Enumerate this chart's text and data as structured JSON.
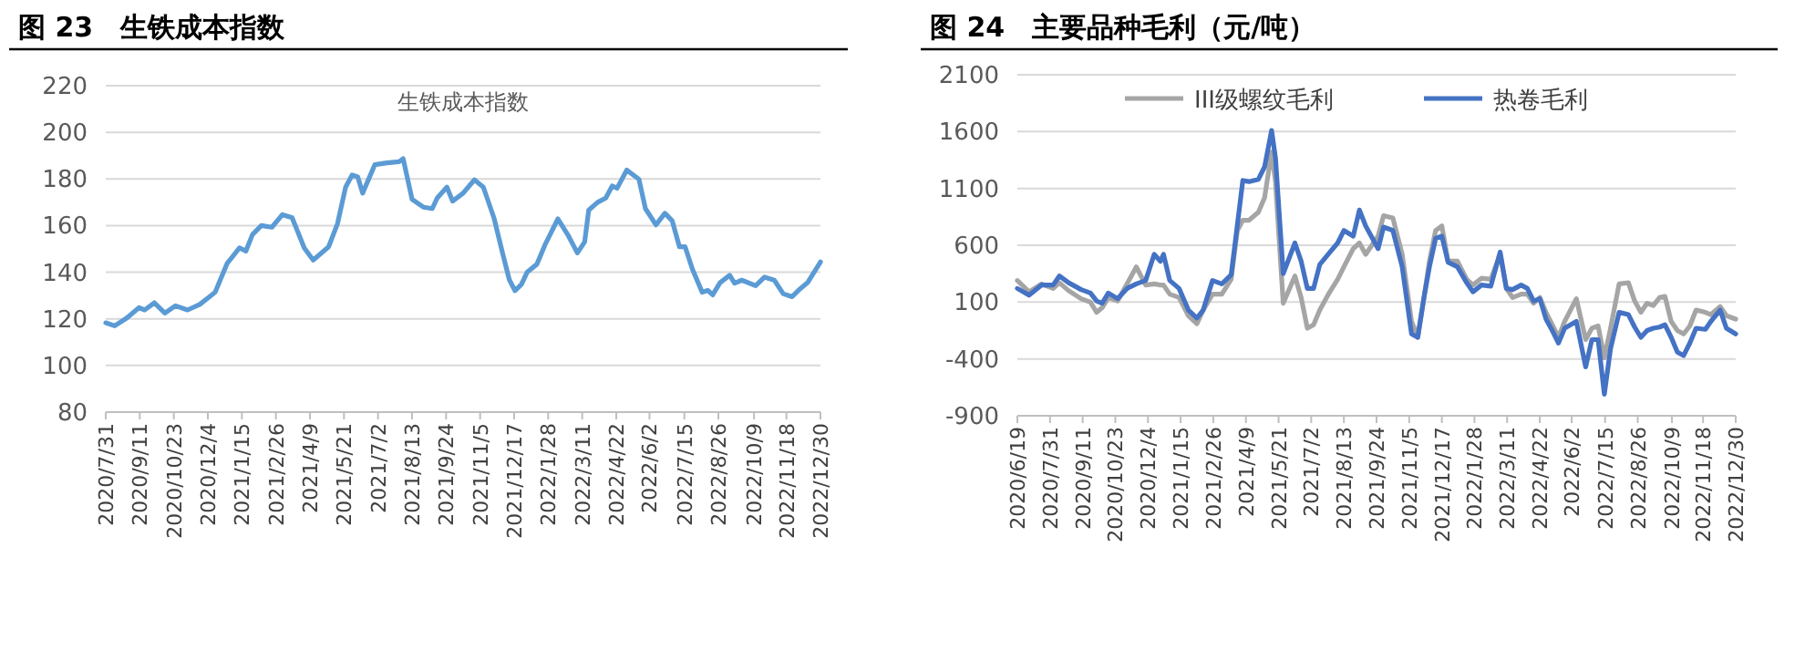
{
  "chart_data": [
    {
      "type": "line",
      "title": "图 23　生铁成本指数",
      "subtitle": "生铁成本指数",
      "x": [
        "2020-07-31",
        "2020-08-11",
        "2020-08-26",
        "2020-09-10",
        "2020-09-17",
        "2020-09-29",
        "2020-10-12",
        "2020-10-25",
        "2020-11-09",
        "2020-11-24",
        "2020-12-06",
        "2020-12-13",
        "2020-12-28",
        "2021-01-12",
        "2021-01-20",
        "2021-01-28",
        "2021-02-08",
        "2021-02-21",
        "2021-03-06",
        "2021-03-18",
        "2021-04-02",
        "2021-04-13",
        "2021-05-02",
        "2021-05-13",
        "2021-05-23",
        "2021-05-31",
        "2021-06-07",
        "2021-06-13",
        "2021-06-28",
        "2021-07-13",
        "2021-07-28",
        "2021-08-02",
        "2021-08-13",
        "2021-08-27",
        "2021-09-07",
        "2021-09-13",
        "2021-09-25",
        "2021-10-02",
        "2021-10-15",
        "2021-10-29",
        "2021-11-09",
        "2021-11-22",
        "2021-12-03",
        "2021-12-11",
        "2021-12-18",
        "2021-12-26",
        "2022-01-02",
        "2022-01-14",
        "2022-01-24",
        "2022-02-09",
        "2022-02-22",
        "2022-03-05",
        "2022-03-14",
        "2022-03-19",
        "2022-03-30",
        "2022-04-09",
        "2022-04-17",
        "2022-04-23",
        "2022-05-05",
        "2022-05-20",
        "2022-05-28",
        "2022-06-10",
        "2022-06-21",
        "2022-06-30",
        "2022-07-09",
        "2022-07-16",
        "2022-07-25",
        "2022-08-06",
        "2022-08-13",
        "2022-08-19",
        "2022-08-28",
        "2022-09-09",
        "2022-09-15",
        "2022-09-24",
        "2022-10-11",
        "2022-10-22",
        "2022-11-03",
        "2022-11-14",
        "2022-11-25",
        "2022-12-05",
        "2022-12-14",
        "2022-12-30"
      ],
      "series": [
        {
          "color": "#5b9bd5",
          "values": [
            118.3,
            117,
            120.4,
            124.8,
            123.8,
            126.9,
            122.5,
            125.6,
            123.8,
            126.2,
            129.5,
            131.4,
            143.9,
            150.4,
            149.1,
            156.1,
            160,
            159.3,
            164.7,
            163.4,
            150.4,
            145.2,
            150.9,
            160.8,
            176.5,
            181.7,
            180.9,
            173.9,
            186.1,
            186.9,
            187.4,
            188.7,
            171.3,
            167.9,
            167.3,
            171.8,
            176.5,
            170.5,
            173.9,
            179.6,
            176.5,
            163.4,
            147.8,
            136.8,
            132.1,
            134.8,
            140,
            143.4,
            151.7,
            162.9,
            155.6,
            148.3,
            153,
            166.6,
            170,
            171.8,
            177,
            176,
            183.8,
            179.9,
            167.3,
            160.3,
            165.3,
            162.1,
            150.9,
            150.9,
            141.3,
            131.4,
            132.2,
            130.3,
            135.5,
            138.7,
            135.3,
            136.6,
            134.2,
            137.9,
            136.6,
            130.8,
            129.5,
            132.9,
            135.5,
            144.4
          ]
        }
      ],
      "ylim": [
        80,
        220
      ],
      "yticks": [
        80,
        100,
        120,
        140,
        160,
        180,
        200,
        220
      ],
      "xlim": [
        "2020-07-31",
        "2022-12-30"
      ],
      "xticks": [
        {
          "value": "2020-07-31",
          "label": "2020/7/31"
        },
        {
          "value": "2020-09-11",
          "label": "2020/9/11"
        },
        {
          "value": "2020-10-23",
          "label": "2020/10/23"
        },
        {
          "value": "2020-12-04",
          "label": "2020/12/4"
        },
        {
          "value": "2021-01-15",
          "label": "2021/1/15"
        },
        {
          "value": "2021-02-26",
          "label": "2021/2/26"
        },
        {
          "value": "2021-04-09",
          "label": "2021/4/9"
        },
        {
          "value": "2021-05-21",
          "label": "2021/5/21"
        },
        {
          "value": "2021-07-02",
          "label": "2021/7/2"
        },
        {
          "value": "2021-08-13",
          "label": "2021/8/13"
        },
        {
          "value": "2021-09-24",
          "label": "2021/9/24"
        },
        {
          "value": "2021-11-05",
          "label": "2021/11/5"
        },
        {
          "value": "2021-12-17",
          "label": "2021/12/17"
        },
        {
          "value": "2022-01-28",
          "label": "2022/1/28"
        },
        {
          "value": "2022-03-11",
          "label": "2022/3/11"
        },
        {
          "value": "2022-04-22",
          "label": "2022/4/22"
        },
        {
          "value": "2022-06-02",
          "label": "2022/6/2"
        },
        {
          "value": "2022-07-15",
          "label": "2022/7/15"
        },
        {
          "value": "2022-08-26",
          "label": "2022/8/26"
        },
        {
          "value": "2022-10-09",
          "label": "2022/10/9"
        },
        {
          "value": "2022-11-18",
          "label": "2022/11/18"
        },
        {
          "value": "2022-12-30",
          "label": "2022/12/30"
        }
      ],
      "grid": "y",
      "legend": false
    },
    {
      "type": "line",
      "title": "图 24　主要品种毛利（元/吨）",
      "x": [
        "2020-06-19",
        "2020-07-04",
        "2020-07-20",
        "2020-08-04",
        "2020-08-12",
        "2020-08-24",
        "2020-09-09",
        "2020-09-21",
        "2020-09-29",
        "2020-10-06",
        "2020-10-14",
        "2020-10-26",
        "2020-11-07",
        "2020-11-19",
        "2020-12-01",
        "2020-12-12",
        "2020-12-20",
        "2020-12-24",
        "2021-01-01",
        "2021-01-13",
        "2021-01-25",
        "2021-02-05",
        "2021-02-13",
        "2021-02-25",
        "2021-03-09",
        "2021-03-21",
        "2021-03-29",
        "2021-04-05",
        "2021-04-13",
        "2021-04-25",
        "2021-05-03",
        "2021-05-12",
        "2021-05-17",
        "2021-05-27",
        "2021-06-11",
        "2021-06-19",
        "2021-06-27",
        "2021-07-05",
        "2021-07-13",
        "2021-07-25",
        "2021-08-05",
        "2021-08-13",
        "2021-08-25",
        "2021-09-02",
        "2021-09-10",
        "2021-09-26",
        "2021-10-03",
        "2021-10-15",
        "2021-10-27",
        "2021-11-08",
        "2021-11-16",
        "2021-11-24",
        "2021-12-01",
        "2021-12-09",
        "2021-12-17",
        "2021-12-25",
        "2022-01-06",
        "2022-01-18",
        "2022-01-26",
        "2022-02-06",
        "2022-02-18",
        "2022-03-02",
        "2022-03-10",
        "2022-03-18",
        "2022-03-29",
        "2022-04-06",
        "2022-04-14",
        "2022-04-22",
        "2022-04-30",
        "2022-05-08",
        "2022-05-16",
        "2022-05-24",
        "2022-06-08",
        "2022-06-20",
        "2022-06-28",
        "2022-07-06",
        "2022-07-14",
        "2022-07-22",
        "2022-08-02",
        "2022-08-14",
        "2022-08-22",
        "2022-08-30",
        "2022-09-07",
        "2022-09-15",
        "2022-09-23",
        "2022-09-30",
        "2022-10-08",
        "2022-10-16",
        "2022-10-24",
        "2022-11-01",
        "2022-11-09",
        "2022-11-21",
        "2022-11-28",
        "2022-12-10",
        "2022-12-18",
        "2022-12-30"
      ],
      "series": [
        {
          "name": "III级螺纹毛利",
          "color": "#a5a5a5",
          "values": [
            290,
            190,
            260,
            220,
            270,
            200,
            130,
            100,
            10,
            50,
            140,
            110,
            260,
            410,
            250,
            260,
            250,
            250,
            170,
            140,
            -20,
            -90,
            30,
            170,
            170,
            300,
            730,
            820,
            820,
            890,
            1020,
            1420,
            1160,
            90,
            330,
            140,
            -130,
            -100,
            30,
            180,
            300,
            410,
            570,
            620,
            520,
            680,
            860,
            840,
            520,
            -70,
            -210,
            140,
            460,
            730,
            770,
            460,
            460,
            300,
            250,
            310,
            300,
            520,
            220,
            140,
            170,
            170,
            90,
            140,
            10,
            -100,
            -210,
            -70,
            130,
            -230,
            -130,
            -110,
            -390,
            -130,
            260,
            270,
            110,
            10,
            90,
            70,
            140,
            150,
            -70,
            -150,
            -180,
            -110,
            30,
            10,
            -10,
            60,
            -20,
            -50
          ]
        },
        {
          "name": "热卷毛利",
          "color": "#4472c4",
          "values": [
            220,
            160,
            250,
            250,
            330,
            270,
            210,
            180,
            110,
            90,
            180,
            130,
            220,
            260,
            290,
            520,
            460,
            520,
            290,
            220,
            30,
            -40,
            30,
            290,
            260,
            340,
            780,
            1170,
            1160,
            1180,
            1290,
            1610,
            1370,
            350,
            620,
            460,
            220,
            220,
            430,
            530,
            620,
            730,
            680,
            910,
            770,
            570,
            760,
            730,
            410,
            -180,
            -210,
            140,
            410,
            660,
            680,
            450,
            410,
            270,
            190,
            250,
            240,
            540,
            220,
            210,
            250,
            220,
            110,
            130,
            -50,
            -150,
            -260,
            -130,
            -70,
            -470,
            -230,
            -230,
            -710,
            -310,
            10,
            -10,
            -120,
            -210,
            -150,
            -130,
            -120,
            -100,
            -210,
            -340,
            -370,
            -260,
            -130,
            -140,
            -70,
            30,
            -130,
            -180
          ]
        }
      ],
      "ylim": [
        -900,
        2100
      ],
      "yticks": [
        -900,
        -400,
        100,
        600,
        1100,
        1600,
        2100
      ],
      "xlim": [
        "2020-06-19",
        "2022-12-30"
      ],
      "xticks": [
        {
          "value": "2020-06-19",
          "label": "2020/6/19"
        },
        {
          "value": "2020-07-31",
          "label": "2020/7/31"
        },
        {
          "value": "2020-09-11",
          "label": "2020/9/11"
        },
        {
          "value": "2020-10-23",
          "label": "2020/10/23"
        },
        {
          "value": "2020-12-04",
          "label": "2020/12/4"
        },
        {
          "value": "2021-01-15",
          "label": "2021/1/15"
        },
        {
          "value": "2021-02-26",
          "label": "2021/2/26"
        },
        {
          "value": "2021-04-09",
          "label": "2021/4/9"
        },
        {
          "value": "2021-05-21",
          "label": "2021/5/21"
        },
        {
          "value": "2021-07-02",
          "label": "2021/7/2"
        },
        {
          "value": "2021-08-13",
          "label": "2021/8/13"
        },
        {
          "value": "2021-09-24",
          "label": "2021/9/24"
        },
        {
          "value": "2021-11-05",
          "label": "2021/11/5"
        },
        {
          "value": "2021-12-17",
          "label": "2021/12/17"
        },
        {
          "value": "2022-01-28",
          "label": "2022/1/28"
        },
        {
          "value": "2022-03-11",
          "label": "2022/3/11"
        },
        {
          "value": "2022-04-22",
          "label": "2022/4/22"
        },
        {
          "value": "2022-06-02",
          "label": "2022/6/2"
        },
        {
          "value": "2022-07-15",
          "label": "2022/7/15"
        },
        {
          "value": "2022-08-26",
          "label": "2022/8/26"
        },
        {
          "value": "2022-10-09",
          "label": "2022/10/9"
        },
        {
          "value": "2022-11-18",
          "label": "2022/11/18"
        },
        {
          "value": "2022-12-30",
          "label": "2022/12/30"
        }
      ],
      "grid": "y",
      "legend": "top"
    }
  ]
}
